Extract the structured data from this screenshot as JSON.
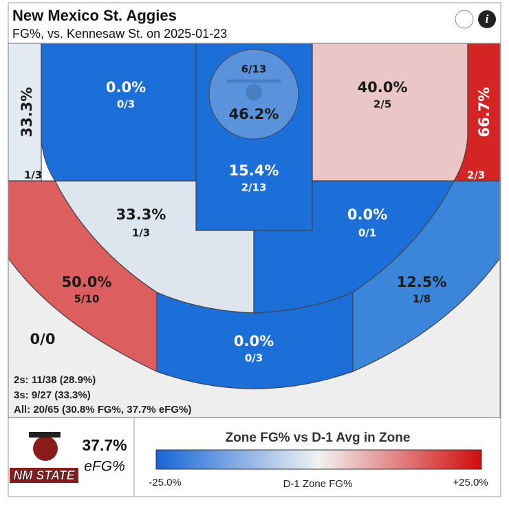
{
  "header": {
    "title": "New Mexico St. Aggies",
    "subtitle": "FG%, vs. Kennesaw St. on 2025-01-23"
  },
  "zones": [
    {
      "pct": "33.3%",
      "frac": "1/3",
      "color": "#e4eaf2"
    },
    {
      "pct": "0.0%",
      "frac": "0/3",
      "color": "#1c6fd8"
    },
    {
      "pct": "40.0%",
      "frac": "2/5",
      "color": "#ebc6c6"
    },
    {
      "pct": "66.7%",
      "frac": "2/3",
      "color": "#d42424"
    },
    {
      "pct": "15.4%",
      "frac": "2/13",
      "color": "#1c6fd8"
    },
    {
      "pct": "46.2%",
      "frac": "6/13",
      "color": "#5a93dc"
    },
    {
      "pct": "33.3%",
      "frac": "1/3",
      "color": "#dde5ef"
    },
    {
      "pct": "0.0%",
      "frac": "0/1",
      "color": "#1c6fd8"
    },
    {
      "pct": "50.0%",
      "frac": "5/10",
      "color": "#dd5e5e"
    },
    {
      "pct": "0.0%",
      "frac": "0/3",
      "color": "#1c6fd8"
    },
    {
      "pct": "12.5%",
      "frac": "1/8",
      "color": "#3b86da"
    },
    {
      "frac": "0/0",
      "color": "#eeeeee"
    }
  ],
  "summary": [
    "2s: 11/38 (28.9%)",
    "3s: 9/27 (33.3%)",
    "All: 20/65 (30.8% FG%, 37.7% eFG%)"
  ],
  "footer": {
    "logo": "NM STATE",
    "efg_value": "37.7%",
    "efg_label": "eFG%",
    "legend_title": "Zone FG% vs D-1 Avg in Zone",
    "legend_min": "-25.0%",
    "legend_mid": "D-1 Zone FG%",
    "legend_max": "+25.0%"
  }
}
